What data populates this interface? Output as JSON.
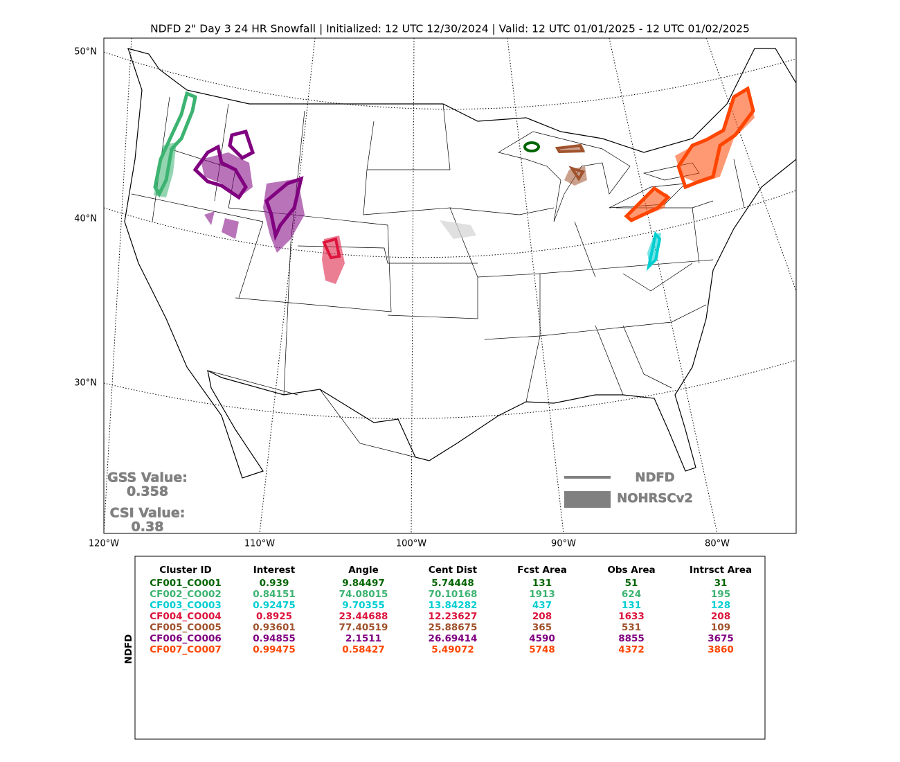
{
  "title": "NDFD 2\" Day 3 24 HR Snowfall | Initialized: 12 UTC 12/30/2024 | Valid: 12 UTC 01/01/2025 - 12 UTC 01/02/2025",
  "map": {
    "lat_labels": [
      "50°N",
      "40°N",
      "30°N"
    ],
    "lon_labels": [
      "120°W",
      "110°W",
      "100°W",
      "90°W",
      "80°W"
    ],
    "gss_label": "GSS Value:",
    "gss_value": 0.358,
    "csi_label": "CSI Value:",
    "csi_value": 0.38,
    "legend": [
      "NDFD",
      "NOHRSCv2"
    ]
  },
  "table": {
    "side_label": "NDFD",
    "columns": [
      "Cluster ID",
      "Interest",
      "Angle",
      "Cent Dist",
      "Fcst Area",
      "Obs Area",
      "Intrsct Area"
    ],
    "colors": [
      "#006400",
      "#3cb371",
      "#00ced1",
      "#dc143c",
      "#a0522d",
      "#800080",
      "#ff4500"
    ],
    "rows": [
      [
        "CF001_CO001",
        0.939,
        9.84497,
        5.74448,
        131,
        51,
        31
      ],
      [
        "CF002_CO002",
        0.84151,
        74.08015,
        70.10168,
        1913,
        624,
        195
      ],
      [
        "CF003_CO003",
        0.92475,
        9.70355,
        13.84282,
        437,
        131,
        128
      ],
      [
        "CF004_CO004",
        0.8925,
        23.44688,
        12.23627,
        208,
        1633,
        208
      ],
      [
        "CF005_CO005",
        0.93601,
        77.40519,
        25.88675,
        365,
        531,
        109
      ],
      [
        "CF006_CO006",
        0.94855,
        2.1511,
        26.69414,
        4590,
        8855,
        3675
      ],
      [
        "CF007_CO007",
        0.99475,
        0.58427,
        5.49072,
        5748,
        4372,
        3860
      ]
    ]
  }
}
